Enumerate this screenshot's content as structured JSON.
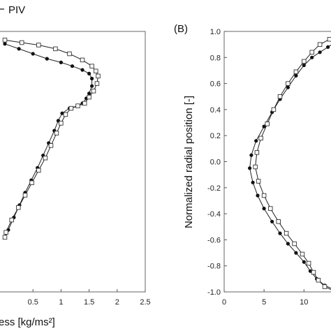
{
  "legend": {
    "label": "PIV"
  },
  "chart_data": [
    {
      "type": "line",
      "panel_label": "",
      "xlabel": "ess [kg/ms²]",
      "xlim": [
        -0.1,
        2.5
      ],
      "ylim": [
        -0.05,
        1.0
      ],
      "xticks": [
        "0.5",
        "1",
        "1.5",
        "2",
        "2.5"
      ],
      "xtick_values": [
        0.5,
        1.0,
        1.5,
        2.0,
        2.5
      ],
      "series": [
        {
          "marker": "filled-circle",
          "points": [
            [
              0.0,
              0.95
            ],
            [
              0.25,
              0.93
            ],
            [
              0.5,
              0.91
            ],
            [
              0.75,
              0.89
            ],
            [
              1.0,
              0.875
            ],
            [
              1.2,
              0.86
            ],
            [
              1.38,
              0.845
            ],
            [
              1.5,
              0.83
            ],
            [
              1.55,
              0.81
            ],
            [
              1.55,
              0.78
            ],
            [
              1.5,
              0.75
            ],
            [
              1.45,
              0.73
            ],
            [
              1.38,
              0.71
            ],
            [
              1.3,
              0.7
            ],
            [
              1.15,
              0.69
            ],
            [
              1.02,
              0.67
            ],
            [
              0.95,
              0.64
            ],
            [
              0.88,
              0.6
            ],
            [
              0.78,
              0.55
            ],
            [
              0.68,
              0.5
            ],
            [
              0.58,
              0.45
            ],
            [
              0.47,
              0.4
            ],
            [
              0.36,
              0.35
            ],
            [
              0.26,
              0.3
            ],
            [
              0.16,
              0.25
            ],
            [
              0.06,
              0.2
            ],
            [
              0.0,
              0.17
            ]
          ]
        },
        {
          "marker": "open-square",
          "points": [
            [
              0.0,
              0.965
            ],
            [
              0.3,
              0.955
            ],
            [
              0.6,
              0.945
            ],
            [
              0.9,
              0.93
            ],
            [
              1.15,
              0.91
            ],
            [
              1.38,
              0.885
            ],
            [
              1.55,
              0.86
            ],
            [
              1.62,
              0.84
            ],
            [
              1.66,
              0.82
            ],
            [
              1.64,
              0.79
            ],
            [
              1.58,
              0.76
            ],
            [
              1.5,
              0.735
            ],
            [
              1.42,
              0.71
            ],
            [
              1.3,
              0.7
            ],
            [
              1.18,
              0.69
            ],
            [
              1.08,
              0.665
            ],
            [
              1.0,
              0.63
            ],
            [
              0.92,
              0.59
            ],
            [
              0.82,
              0.54
            ],
            [
              0.72,
              0.49
            ],
            [
              0.6,
              0.44
            ],
            [
              0.48,
              0.39
            ],
            [
              0.36,
              0.34
            ],
            [
              0.24,
              0.29
            ],
            [
              0.12,
              0.24
            ],
            [
              0.02,
              0.19
            ],
            [
              0.0,
              0.17
            ]
          ]
        }
      ]
    },
    {
      "type": "line",
      "panel_label": "(B)",
      "ylabel": "Normalized radial position [-]",
      "xlim": [
        0,
        14
      ],
      "ylim": [
        -1.0,
        1.0
      ],
      "xticks": [
        "0",
        "5",
        "10"
      ],
      "xtick_values": [
        0,
        5,
        10
      ],
      "yticks": [
        "1.0",
        "0.8",
        "0.6",
        "0.4",
        "0.2",
        "0.0",
        "-0.2",
        "-0.4",
        "-0.6",
        "-0.8",
        "-1.0"
      ],
      "ytick_values": [
        1.0,
        0.8,
        0.6,
        0.4,
        0.2,
        0.0,
        -0.2,
        -0.4,
        -0.6,
        -0.8,
        -1.0
      ],
      "series": [
        {
          "marker": "filled-circle",
          "points": [
            [
              14.0,
              0.92
            ],
            [
              13.0,
              0.88
            ],
            [
              12.0,
              0.84
            ],
            [
              11.0,
              0.8
            ],
            [
              10.0,
              0.74
            ],
            [
              9.0,
              0.66
            ],
            [
              8.0,
              0.57
            ],
            [
              7.0,
              0.48
            ],
            [
              6.0,
              0.38
            ],
            [
              5.0,
              0.27
            ],
            [
              4.0,
              0.16
            ],
            [
              3.4,
              0.05
            ],
            [
              3.2,
              -0.05
            ],
            [
              3.6,
              -0.16
            ],
            [
              4.2,
              -0.26
            ],
            [
              5.0,
              -0.36
            ],
            [
              6.0,
              -0.46
            ],
            [
              7.0,
              -0.55
            ],
            [
              8.0,
              -0.63
            ],
            [
              9.0,
              -0.7
            ],
            [
              10.0,
              -0.77
            ],
            [
              10.8,
              -0.84
            ],
            [
              11.6,
              -0.9
            ],
            [
              12.6,
              -0.95
            ],
            [
              14.0,
              -0.99
            ]
          ]
        },
        {
          "marker": "open-square",
          "points": [
            [
              14.0,
              0.97
            ],
            [
              13.2,
              0.94
            ],
            [
              12.0,
              0.9
            ],
            [
              11.0,
              0.84
            ],
            [
              10.0,
              0.77
            ],
            [
              9.0,
              0.69
            ],
            [
              8.0,
              0.6
            ],
            [
              7.0,
              0.5
            ],
            [
              6.2,
              0.4
            ],
            [
              5.4,
              0.29
            ],
            [
              4.6,
              0.18
            ],
            [
              4.1,
              0.07
            ],
            [
              3.9,
              -0.04
            ],
            [
              4.3,
              -0.15
            ],
            [
              5.0,
              -0.26
            ],
            [
              5.8,
              -0.36
            ],
            [
              6.8,
              -0.46
            ],
            [
              7.8,
              -0.55
            ],
            [
              8.8,
              -0.63
            ],
            [
              9.8,
              -0.71
            ],
            [
              10.6,
              -0.78
            ],
            [
              11.2,
              -0.85
            ],
            [
              11.8,
              -0.91
            ],
            [
              12.6,
              -0.96
            ],
            [
              14.0,
              -1.0
            ]
          ]
        }
      ]
    }
  ]
}
